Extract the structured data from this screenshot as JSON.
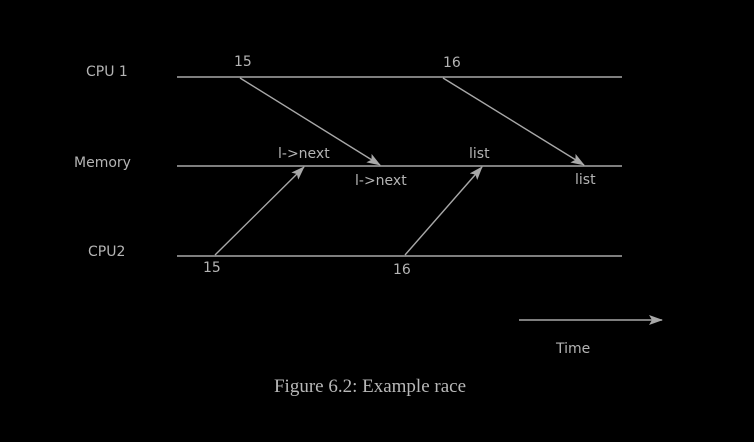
{
  "lanes": {
    "cpu1": "CPU 1",
    "memory": "Memory",
    "cpu2": "CPU2"
  },
  "events": {
    "cpu1_first": "15",
    "cpu1_second": "16",
    "cpu2_first": "15",
    "cpu2_second": "16",
    "mem_lnext_top": "l->next",
    "mem_lnext_bottom": "l->next",
    "mem_list_top": "list",
    "mem_list_bottom": "list"
  },
  "time_label": "Time",
  "caption": "Figure 6.2: Example race"
}
